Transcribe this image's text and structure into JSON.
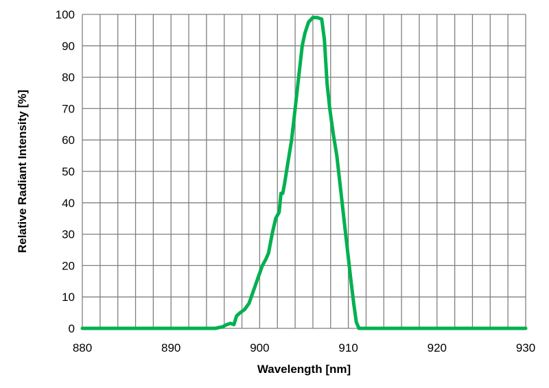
{
  "chart_data": {
    "type": "line",
    "title": "",
    "xlabel": "Wavelength [nm]",
    "ylabel": "Relative Radiant Intensity [%]",
    "xlim": [
      880,
      930
    ],
    "ylim": [
      0,
      100
    ],
    "x_ticks": [
      880,
      890,
      900,
      910,
      920,
      930
    ],
    "y_ticks": [
      0,
      10,
      20,
      30,
      40,
      50,
      60,
      70,
      80,
      90,
      100
    ],
    "x_grid_step": 2,
    "grid": true,
    "line_color": "#00b050",
    "series": [
      {
        "name": "Relative Radiant Intensity",
        "x": [
          880,
          890,
          895,
          895.8,
          896.3,
          896.7,
          897.1,
          897.4,
          897.8,
          898.3,
          898.8,
          899.3,
          899.8,
          900.3,
          900.7,
          901,
          901.4,
          901.8,
          902.2,
          902.4,
          902.6,
          902.8,
          903.2,
          903.6,
          904,
          904.4,
          904.8,
          905.1,
          905.5,
          906,
          906.5,
          907,
          907.3,
          907.6,
          907.9,
          908.3,
          908.7,
          909.1,
          909.5,
          909.9,
          910.3,
          910.6,
          910.9,
          911.2,
          916,
          920,
          930
        ],
        "y": [
          0,
          0,
          0,
          0.5,
          1.2,
          1.6,
          1.2,
          4,
          5,
          6,
          8,
          12,
          16,
          20,
          22,
          24,
          30,
          35,
          37,
          43,
          43,
          46,
          53,
          60,
          70,
          80,
          90,
          94,
          97.5,
          99,
          99,
          98.5,
          92,
          78,
          70,
          62,
          55,
          45,
          35,
          25,
          15,
          8,
          2,
          0,
          0,
          0,
          0
        ]
      }
    ]
  }
}
